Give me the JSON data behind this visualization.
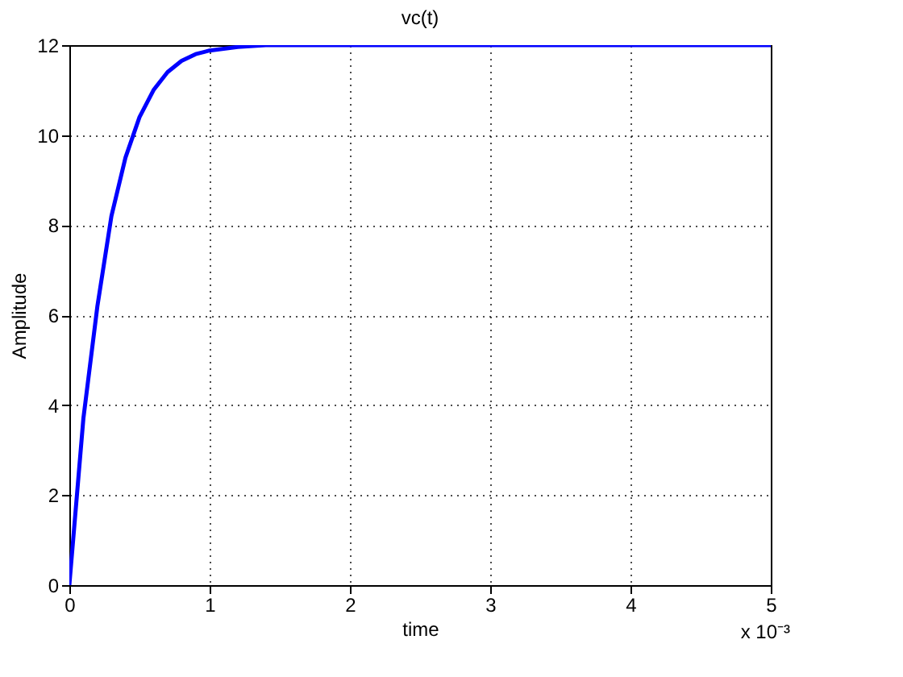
{
  "chart_data": {
    "type": "line",
    "title": "vc(t)",
    "xlabel": "time",
    "ylabel": "Amplitude",
    "annotations": [
      "x 10⁻³"
    ],
    "x": [
      0,
      0.1,
      0.2,
      0.3,
      0.4,
      0.5,
      0.6,
      0.7,
      0.8,
      0.9,
      1.0,
      1.2,
      1.4,
      2,
      3,
      4,
      5
    ],
    "series": [
      {
        "color": "#0000ff",
        "values": [
          0,
          3.7,
          6.2,
          8.2,
          9.5,
          10.4,
          11.0,
          11.4,
          11.65,
          11.8,
          11.88,
          11.96,
          12,
          12,
          12,
          12,
          12
        ]
      }
    ],
    "xlim": [
      0,
      5
    ],
    "xticks": [
      0,
      1,
      2,
      3,
      4,
      5
    ],
    "ylim": [
      0,
      12
    ],
    "yticks": [
      0,
      2,
      4,
      6,
      8,
      10,
      12
    ],
    "grid": true,
    "marker": "none",
    "line_style": "solid"
  }
}
